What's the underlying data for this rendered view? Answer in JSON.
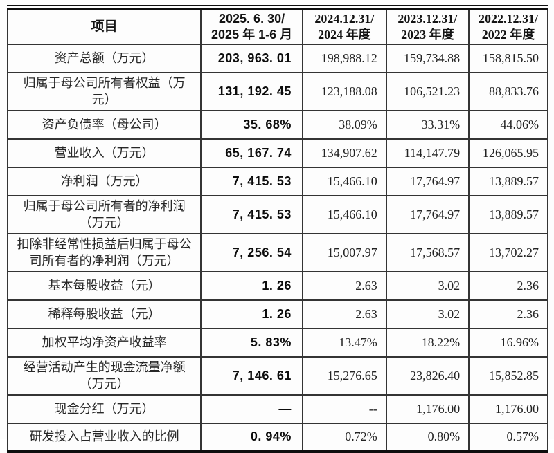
{
  "table": {
    "header": {
      "item_column": "项目",
      "periods": [
        {
          "line1": "2025. 6. 30/",
          "line2": "2025 年 1-6 月"
        },
        {
          "line1": "2024.12.31/",
          "line2": "2024 年度"
        },
        {
          "line1": "2023.12.31/",
          "line2": "2023 年度"
        },
        {
          "line1": "2022.12.31/",
          "line2": "2022 年度"
        }
      ]
    },
    "rows": [
      {
        "label": "资产总额（万元）",
        "values": [
          "203, 963. 01",
          "198,988.12",
          "159,734.88",
          "158,815.50"
        ]
      },
      {
        "label": "归属于母公司所有者权益（万元）",
        "values": [
          "131, 192. 45",
          "123,188.08",
          "106,521.23",
          "88,833.76"
        ]
      },
      {
        "label": "资产负债率（母公司）",
        "values": [
          "35. 68%",
          "38.09%",
          "33.31%",
          "44.06%"
        ]
      },
      {
        "label": "营业收入（万元）",
        "values": [
          "65, 167. 74",
          "134,907.62",
          "114,147.79",
          "126,065.95"
        ]
      },
      {
        "label": "净利润（万元）",
        "values": [
          "7, 415. 53",
          "15,466.10",
          "17,764.97",
          "13,889.57"
        ]
      },
      {
        "label": "归属于母公司所有者的净利润（万元）",
        "values": [
          "7, 415. 53",
          "15,466.10",
          "17,764.97",
          "13,889.57"
        ]
      },
      {
        "label": "扣除非经常性损益后归属于母公司所有者的净利润（万元）",
        "values": [
          "7, 256. 54",
          "15,007.97",
          "17,568.57",
          "13,702.27"
        ]
      },
      {
        "label": "基本每股收益（元）",
        "values": [
          "1. 26",
          "2.63",
          "3.02",
          "2.36"
        ]
      },
      {
        "label": "稀释每股收益（元）",
        "values": [
          "1. 26",
          "2.63",
          "3.02",
          "2.36"
        ]
      },
      {
        "label": "加权平均净资产收益率",
        "values": [
          "5. 83%",
          "13.47%",
          "18.22%",
          "16.96%"
        ]
      },
      {
        "label": "经营活动产生的现金流量净额（万元）",
        "values": [
          "7, 146. 61",
          "15,276.65",
          "23,826.40",
          "15,852.85"
        ]
      },
      {
        "label": "现金分红（万元）",
        "values": [
          "—",
          "--",
          "1,176.00",
          "1,176.00"
        ]
      },
      {
        "label": "研发投入占营业收入的比例",
        "values": [
          "0. 94%",
          "0.72%",
          "0.80%",
          "0.57%"
        ]
      }
    ],
    "colors": {
      "border_outer": "#0e0e0e",
      "border_inner": "#343434",
      "text": "#232323",
      "background": "#fdfdfd"
    }
  }
}
